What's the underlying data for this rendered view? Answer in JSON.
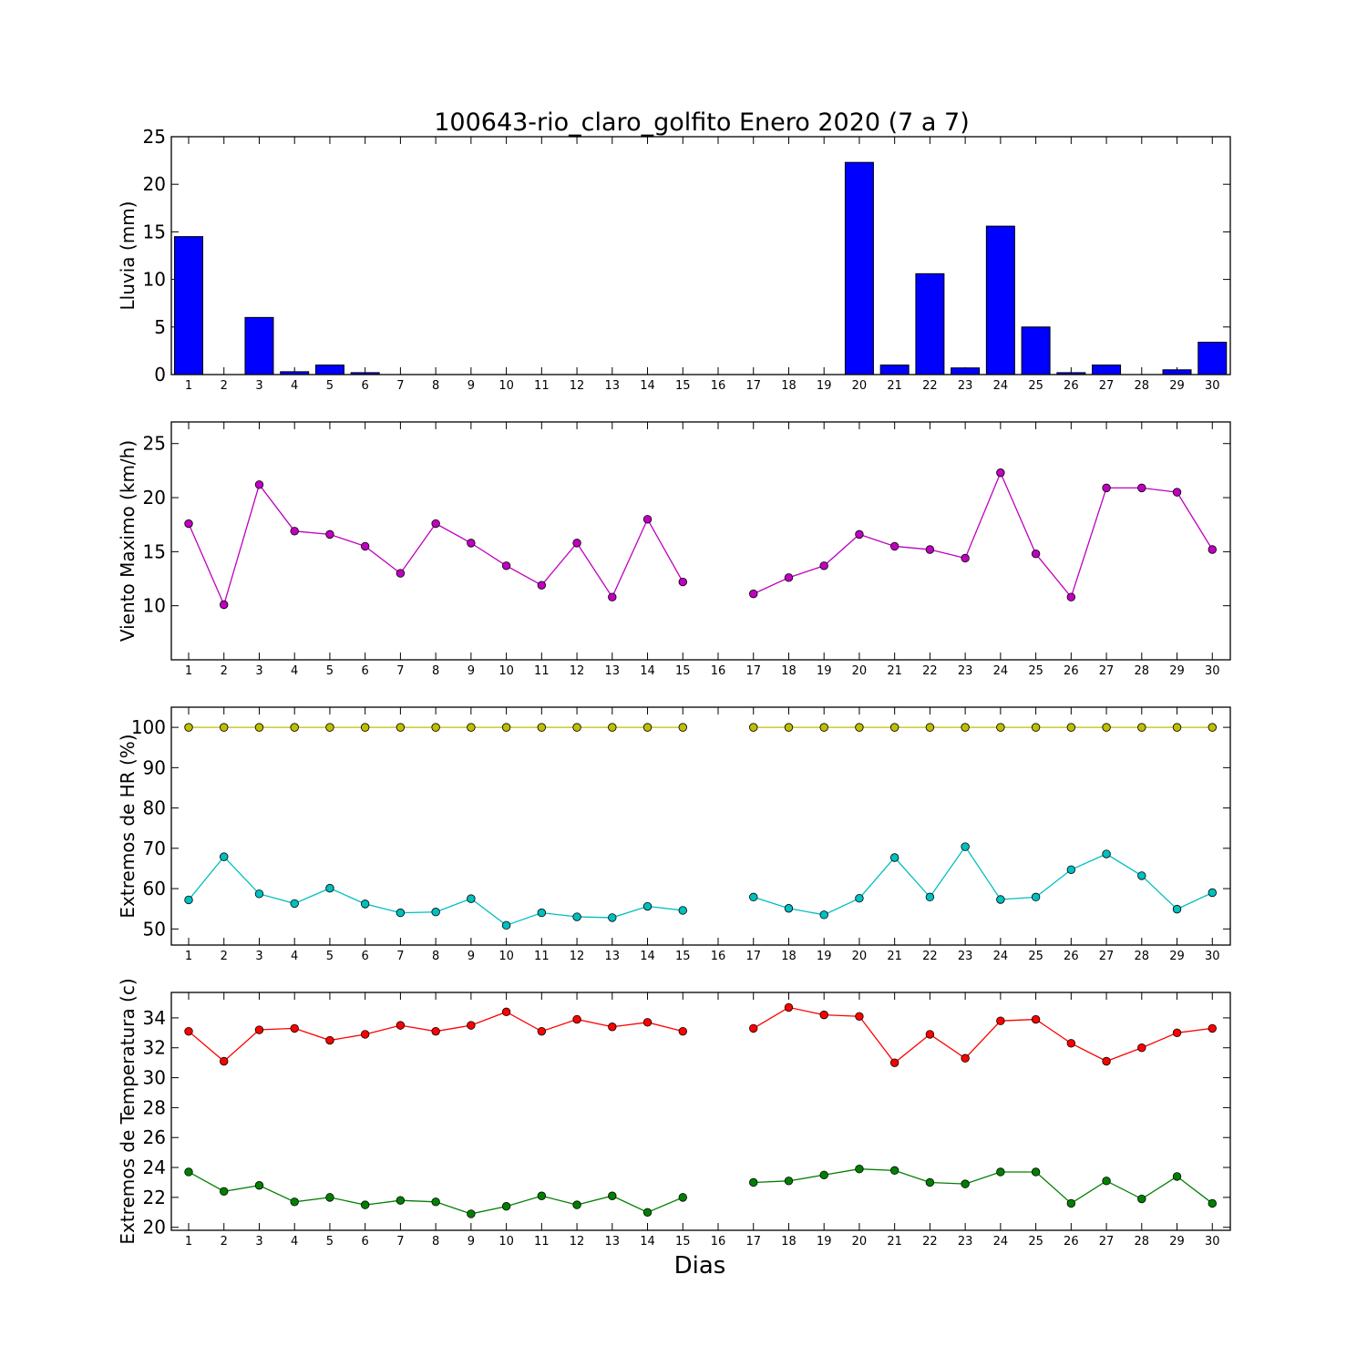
{
  "title": "100643-rio_claro_golfito Enero 2020  (7 a 7)",
  "xlabel": "Dias",
  "chart_data": [
    {
      "type": "bar",
      "ylabel": "Lluvia (mm)",
      "ylim": [
        0,
        25
      ],
      "yticks": [
        0,
        5,
        10,
        15,
        20,
        25
      ],
      "categories": [
        1,
        2,
        3,
        4,
        5,
        6,
        7,
        8,
        9,
        10,
        11,
        12,
        13,
        14,
        15,
        16,
        17,
        18,
        19,
        20,
        21,
        22,
        23,
        24,
        25,
        26,
        27,
        28,
        29,
        30
      ],
      "series": [
        {
          "color": "#0000ff",
          "values": [
            14.5,
            0,
            6.0,
            0.3,
            1.0,
            0.2,
            0,
            0,
            0,
            0,
            0,
            0,
            0,
            0,
            0,
            0,
            0,
            0,
            0,
            22.3,
            1.0,
            10.6,
            0.7,
            15.6,
            5.0,
            0.2,
            1.0,
            0,
            0.5,
            3.4
          ]
        }
      ]
    },
    {
      "type": "line",
      "ylabel": "Viento Maximo (km/h)",
      "ylim": [
        5,
        27
      ],
      "yticks": [
        10,
        15,
        20,
        25
      ],
      "categories": [
        1,
        2,
        3,
        4,
        5,
        6,
        7,
        8,
        9,
        10,
        11,
        12,
        13,
        14,
        15,
        16,
        17,
        18,
        19,
        20,
        21,
        22,
        23,
        24,
        25,
        26,
        27,
        28,
        29,
        30
      ],
      "series": [
        {
          "color": "#bf00bf",
          "values": [
            17.6,
            10.1,
            21.2,
            16.9,
            16.6,
            15.5,
            13.0,
            17.6,
            15.8,
            13.7,
            11.9,
            15.8,
            10.8,
            18.0,
            12.2,
            null,
            11.1,
            12.6,
            13.7,
            16.6,
            15.5,
            15.2,
            14.4,
            22.3,
            14.8,
            10.8,
            20.9,
            20.9,
            20.5,
            15.2
          ]
        }
      ]
    },
    {
      "type": "line",
      "ylabel": "Extremos de HR (%)",
      "ylim": [
        46,
        105
      ],
      "yticks": [
        50,
        60,
        70,
        80,
        90,
        100
      ],
      "categories": [
        1,
        2,
        3,
        4,
        5,
        6,
        7,
        8,
        9,
        10,
        11,
        12,
        13,
        14,
        15,
        16,
        17,
        18,
        19,
        20,
        21,
        22,
        23,
        24,
        25,
        26,
        27,
        28,
        29,
        30
      ],
      "series": [
        {
          "color": "#bfbf00",
          "values": [
            100,
            100,
            100,
            100,
            100,
            100,
            100,
            100,
            100,
            100,
            100,
            100,
            100,
            100,
            100,
            null,
            100,
            100,
            100,
            100,
            100,
            100,
            100,
            100,
            100,
            100,
            100,
            100,
            100,
            100
          ]
        },
        {
          "color": "#00bfbf",
          "values": [
            57.2,
            67.9,
            58.7,
            56.3,
            60.1,
            56.2,
            54.0,
            54.2,
            57.5,
            50.9,
            54.0,
            53.0,
            52.8,
            55.6,
            54.6,
            null,
            57.9,
            55.1,
            53.5,
            57.6,
            67.7,
            57.9,
            70.4,
            57.3,
            57.9,
            64.7,
            68.6,
            63.2,
            54.9,
            59.0
          ]
        }
      ]
    },
    {
      "type": "line",
      "ylabel": "Extremos de Temperatura (c)",
      "ylim": [
        19.8,
        35.7
      ],
      "yticks": [
        20,
        22,
        24,
        26,
        28,
        30,
        32,
        34
      ],
      "categories": [
        1,
        2,
        3,
        4,
        5,
        6,
        7,
        8,
        9,
        10,
        11,
        12,
        13,
        14,
        15,
        16,
        17,
        18,
        19,
        20,
        21,
        22,
        23,
        24,
        25,
        26,
        27,
        28,
        29,
        30
      ],
      "series": [
        {
          "color": "#ff0000",
          "values": [
            33.1,
            31.1,
            33.2,
            33.3,
            32.5,
            32.9,
            33.5,
            33.1,
            33.5,
            34.4,
            33.1,
            33.9,
            33.4,
            33.7,
            33.1,
            null,
            33.3,
            34.7,
            34.2,
            34.1,
            31.0,
            32.9,
            31.3,
            33.8,
            33.9,
            32.3,
            31.1,
            32.0,
            33.0,
            33.3
          ]
        },
        {
          "color": "#008000",
          "values": [
            23.7,
            22.4,
            22.8,
            21.7,
            22.0,
            21.5,
            21.8,
            21.7,
            20.9,
            21.4,
            22.1,
            21.5,
            22.1,
            21.0,
            22.0,
            null,
            23.0,
            23.1,
            23.5,
            23.9,
            23.8,
            23.0,
            22.9,
            23.7,
            23.7,
            21.6,
            23.1,
            21.9,
            23.4,
            21.6
          ]
        }
      ]
    }
  ]
}
